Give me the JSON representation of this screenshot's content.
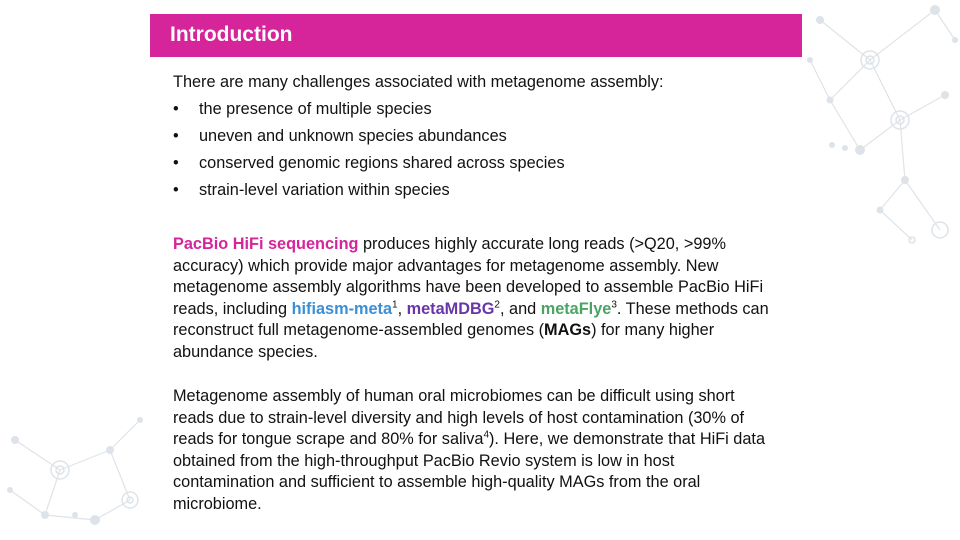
{
  "header": {
    "title": "Introduction"
  },
  "intro": {
    "lead": "There are many challenges associated with metagenome assembly:",
    "bullet_symbol": "•",
    "challenges": [
      "the presence of multiple species",
      "uneven and unknown species abundances",
      "conserved genomic regions shared across species",
      "strain-level variation within species"
    ]
  },
  "para1": {
    "pacbio_highlight": "PacBio HiFi sequencing",
    "t1": " produces highly accurate long reads (>Q20, >99% accuracy) which provide major advantages for metagenome assembly. New metagenome assembly algorithms have been developed to assemble PacBio HiFi reads, including ",
    "hifiasm": "hifiasm-meta",
    "ref1": "1",
    "t2": ", ",
    "metamdbg": "metaMDBG",
    "ref2": "2",
    "t3": ", and ",
    "metaflye": "metaFlye",
    "ref3": "3",
    "t4": ". These methods can reconstruct full metagenome-assembled genomes (",
    "mags": "MAGs",
    "t5": ") for many higher abundance species."
  },
  "para2": {
    "t1": "Metagenome assembly of human oral microbiomes can be difficult using short reads due to strain-level diversity and high levels of host contamination (30% of reads for tongue scrape and 80% for saliva",
    "ref4": "4",
    "t2": "). Here, we demonstrate that HiFi data obtained from the high-throughput PacBio Revio system is low in host contamination and sufficient to assemble high-quality MAGs from the oral microbiome."
  },
  "colors": {
    "header_bg": "#d6249a",
    "pacbio": "#d6249a",
    "hifiasm": "#3a8fd6",
    "metamdbg": "#6a35a8",
    "metaflye": "#4aa564",
    "network": "#d7dde3"
  }
}
